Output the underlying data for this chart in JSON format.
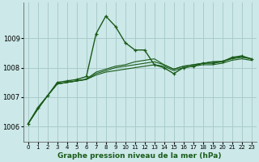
{
  "xlabel_label": "Graphe pression niveau de la mer (hPa)",
  "bg_color": "#cce8e8",
  "grid_color": "#aacccc",
  "line_color": "#1a5c1a",
  "ylim": [
    1005.5,
    1010.2
  ],
  "yticks": [
    1006,
    1007,
    1008,
    1009
  ],
  "xlim": [
    -0.5,
    23.5
  ],
  "x_ticks": [
    0,
    1,
    2,
    3,
    4,
    5,
    6,
    7,
    8,
    9,
    10,
    11,
    12,
    13,
    14,
    15,
    16,
    17,
    18,
    19,
    20,
    21,
    22,
    23
  ],
  "series_main": [
    1006.1,
    1006.65,
    1007.05,
    1007.5,
    1007.55,
    1007.6,
    1007.7,
    1009.15,
    1009.75,
    1009.4,
    1008.85,
    1008.6,
    1008.6,
    1008.1,
    1008.0,
    1007.8,
    1008.0,
    1008.05,
    1008.15,
    1008.15,
    1008.2,
    1008.35,
    1008.4,
    1008.3
  ],
  "series_secondary": [
    [
      1006.1,
      1006.6,
      1007.05,
      1007.45,
      1007.5,
      1007.55,
      1007.6,
      1007.75,
      1007.85,
      1007.9,
      1007.95,
      1008.0,
      1008.05,
      1008.1,
      1008.05,
      1007.9,
      1008.0,
      1008.05,
      1008.1,
      1008.1,
      1008.15,
      1008.25,
      1008.3,
      1008.25
    ],
    [
      1006.1,
      1006.6,
      1007.05,
      1007.45,
      1007.5,
      1007.55,
      1007.6,
      1007.8,
      1007.9,
      1008.0,
      1008.05,
      1008.1,
      1008.15,
      1008.2,
      1008.1,
      1007.95,
      1008.05,
      1008.1,
      1008.15,
      1008.2,
      1008.2,
      1008.3,
      1008.35,
      1008.3
    ],
    [
      1006.1,
      1006.6,
      1007.05,
      1007.45,
      1007.5,
      1007.55,
      1007.62,
      1007.85,
      1007.95,
      1008.05,
      1008.1,
      1008.2,
      1008.25,
      1008.3,
      1008.1,
      1007.95,
      1008.05,
      1008.1,
      1008.15,
      1008.2,
      1008.22,
      1008.32,
      1008.37,
      1008.3
    ]
  ],
  "xlabel_fontsize": 6.5,
  "ytick_fontsize": 6.0,
  "xtick_fontsize": 5.0
}
